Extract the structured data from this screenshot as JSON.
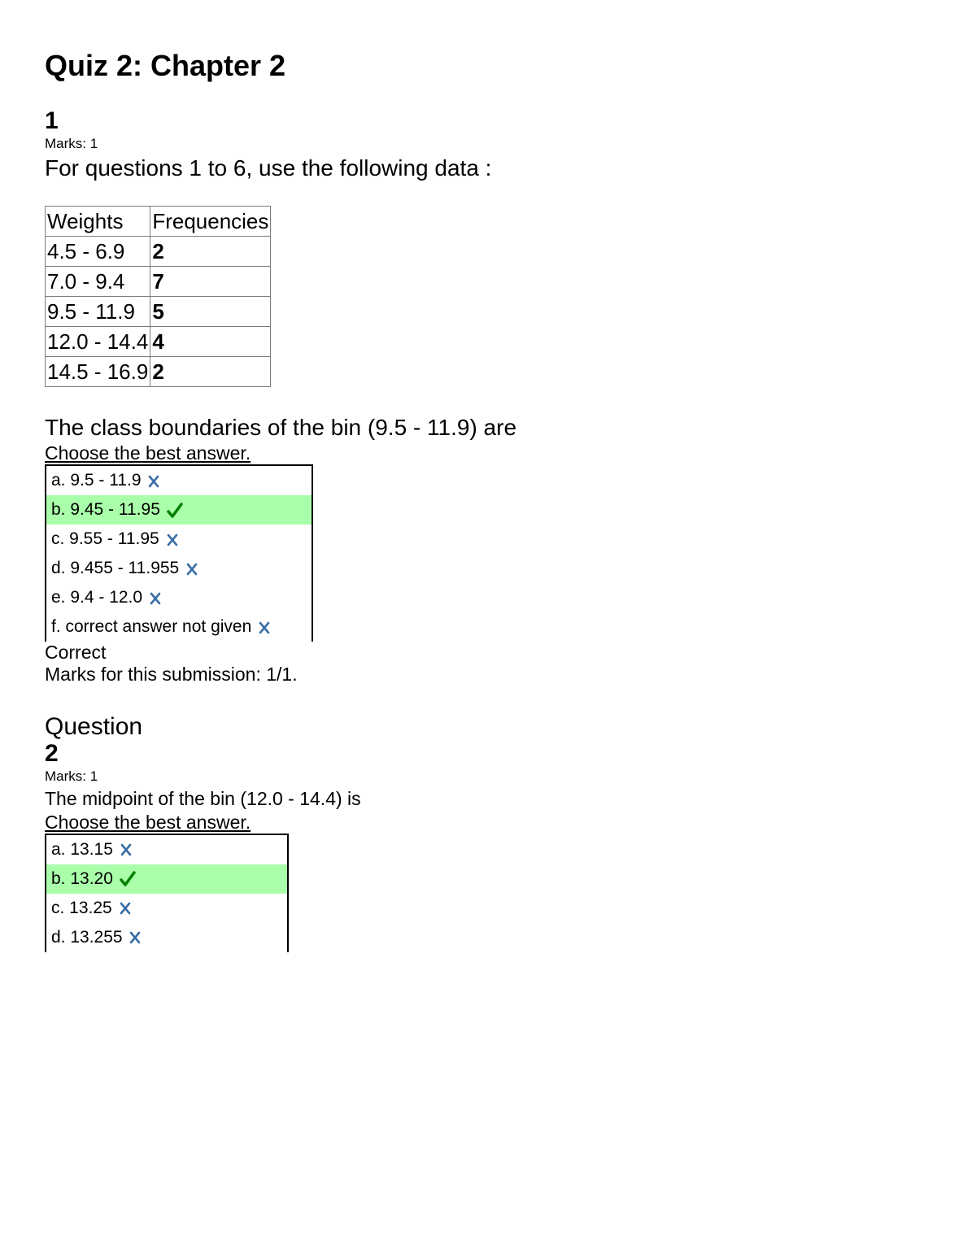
{
  "title": "Quiz 2: Chapter 2",
  "colors": {
    "correct_bg": "#aaffaa",
    "tick": "#008000",
    "cross": "#3a6ea5",
    "border": "#7b7b7b"
  },
  "data_table": {
    "columns": [
      "Weights",
      "Frequencies"
    ],
    "rows": [
      [
        "4.5 - 6.9",
        "2"
      ],
      [
        "7.0 - 9.4",
        "7"
      ],
      [
        "9.5 - 11.9",
        "5"
      ],
      [
        "12.0 - 14.4",
        "4"
      ],
      [
        "14.5 - 16.9",
        "2"
      ]
    ],
    "col_widths": [
      "155px",
      "155px"
    ]
  },
  "q1": {
    "number": "1",
    "marks_label": "Marks: 1",
    "intro": "For questions 1 to 6, use the following data :",
    "text": "The class boundaries of the bin (9.5 - 11.9) are",
    "choose": "Choose the best answer.",
    "answers": [
      {
        "label": "a. 9.5 - 11.9",
        "correct": false
      },
      {
        "label": "b. 9.45 - 11.95",
        "correct": true
      },
      {
        "label": "c. 9.55 - 11.95",
        "correct": false
      },
      {
        "label": "d. 9.455 - 11.955",
        "correct": false
      },
      {
        "label": "e. 9.4 - 12.0",
        "correct": false
      },
      {
        "label": "f. correct answer not given",
        "correct": false
      }
    ],
    "feedback": "Correct",
    "submission": "Marks for this submission: 1/1."
  },
  "q2": {
    "heading": "Question",
    "number": "2",
    "marks_label": "Marks: 1",
    "text": "The midpoint of the bin (12.0 - 14.4) is",
    "choose": "Choose the best answer.",
    "answers": [
      {
        "label": "a. 13.15",
        "correct": false
      },
      {
        "label": "b. 13.20",
        "correct": true
      },
      {
        "label": "c. 13.25",
        "correct": false
      },
      {
        "label": "d. 13.255",
        "correct": false
      }
    ]
  }
}
